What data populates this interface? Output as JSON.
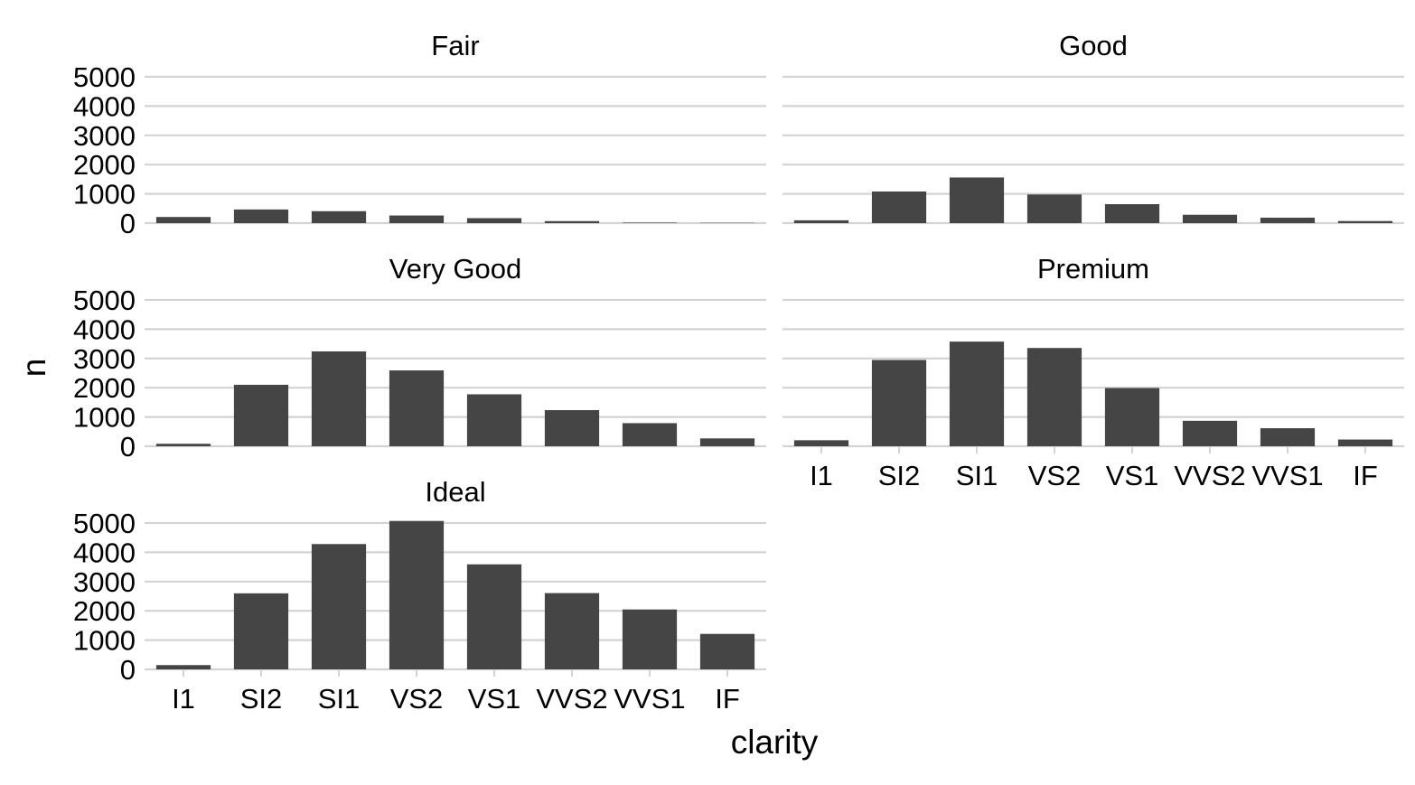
{
  "chart_data": {
    "type": "bar",
    "xlabel": "clarity",
    "ylabel": "n",
    "categories": [
      "I1",
      "SI2",
      "SI1",
      "VS2",
      "VS1",
      "VVS2",
      "VVS1",
      "IF"
    ],
    "ylim": [
      0,
      5000
    ],
    "yticks": [
      0,
      1000,
      2000,
      3000,
      4000,
      5000
    ],
    "grid": "horizontal major",
    "facet_by": "cut",
    "panels": [
      {
        "name": "Fair",
        "values": [
          210,
          466,
          408,
          261,
          170,
          69,
          17,
          9
        ]
      },
      {
        "name": "Good",
        "values": [
          96,
          1081,
          1560,
          978,
          648,
          286,
          186,
          71
        ]
      },
      {
        "name": "Very Good",
        "values": [
          84,
          2100,
          3240,
          2591,
          1775,
          1235,
          789,
          268
        ]
      },
      {
        "name": "Premium",
        "values": [
          205,
          2949,
          3575,
          3357,
          1989,
          870,
          616,
          230
        ]
      },
      {
        "name": "Ideal",
        "values": [
          146,
          2598,
          4282,
          5071,
          3589,
          2606,
          2047,
          1212
        ]
      }
    ],
    "bar_color": "#454545",
    "grid_color": "#d3d3d3"
  }
}
